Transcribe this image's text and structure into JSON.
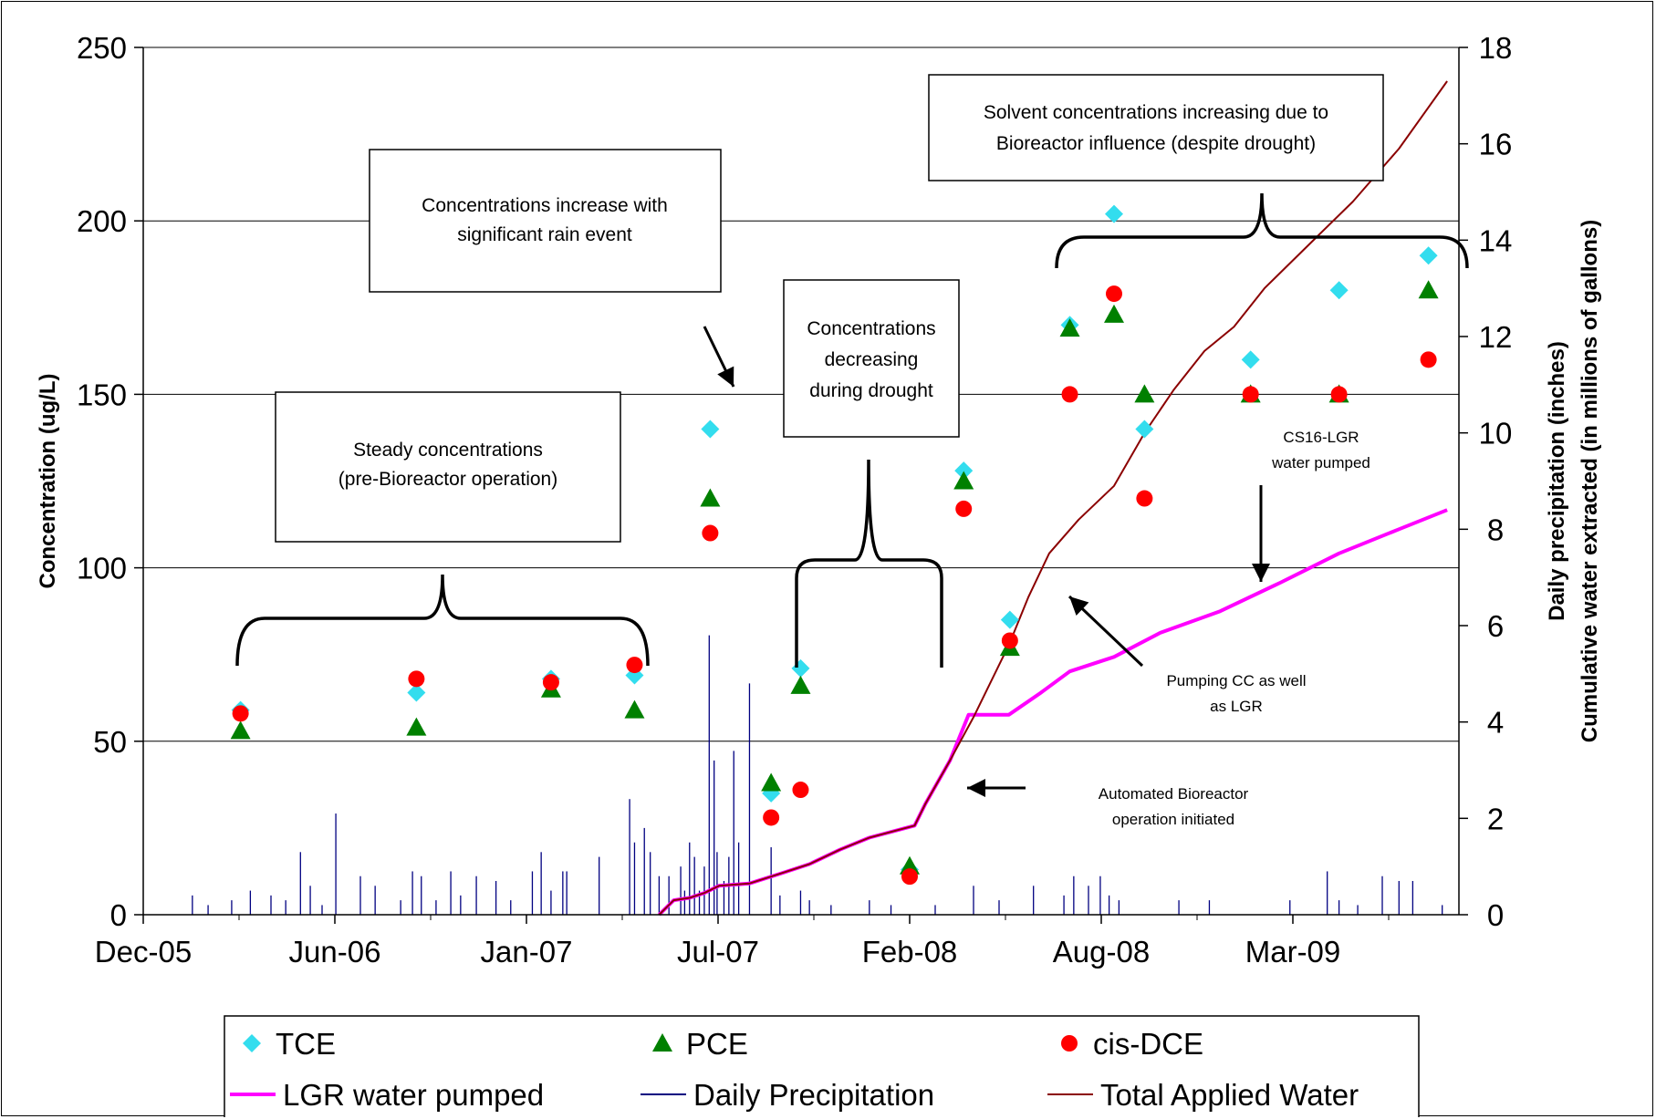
{
  "chart_data": {
    "type": "scatter",
    "x_axis": {
      "tick_labels": [
        "Dec-05",
        "Jun-06",
        "Jan-07",
        "Jul-07",
        "Feb-08",
        "Aug-08",
        "Mar-09"
      ],
      "range": [
        "2005-12-01",
        "2009-08-01"
      ]
    },
    "y_axis_left": {
      "label": "Concentration (ug/L)",
      "ticks": [
        "0",
        "50",
        "100",
        "150",
        "200",
        "250"
      ],
      "range": [
        0,
        250
      ]
    },
    "y_axis_right": {
      "label_line1": "Daily precipitation (inches)",
      "label_line2": "Cumulative water extracted (in millions of gallons)",
      "ticks": [
        "0",
        "2",
        "4",
        "6",
        "8",
        "10",
        "12",
        "14",
        "16",
        "18"
      ],
      "range": [
        0,
        18
      ]
    },
    "grid": "horizontal major gridlines",
    "series": [
      {
        "name": "TCE",
        "marker": "diamond",
        "color": "#33ddee",
        "axis": "left",
        "points": [
          [
            "2006-03-10",
            59
          ],
          [
            "2006-09-05",
            64
          ],
          [
            "2007-01-20",
            68
          ],
          [
            "2007-04-15",
            69
          ],
          [
            "2007-07-01",
            140
          ],
          [
            "2007-09-01",
            35
          ],
          [
            "2007-10-01",
            71
          ],
          [
            "2008-01-20",
            13
          ],
          [
            "2008-03-15",
            128
          ],
          [
            "2008-05-01",
            85
          ],
          [
            "2008-07-01",
            170
          ],
          [
            "2008-08-15",
            202
          ],
          [
            "2008-09-15",
            140
          ],
          [
            "2009-01-01",
            160
          ],
          [
            "2009-04-01",
            180
          ],
          [
            "2009-07-01",
            190
          ]
        ]
      },
      {
        "name": "PCE",
        "marker": "triangle",
        "color": "#008000",
        "axis": "left",
        "points": [
          [
            "2006-03-10",
            53
          ],
          [
            "2006-09-05",
            54
          ],
          [
            "2007-01-20",
            65
          ],
          [
            "2007-04-15",
            59
          ],
          [
            "2007-07-01",
            120
          ],
          [
            "2007-09-01",
            38
          ],
          [
            "2007-10-01",
            66
          ],
          [
            "2008-01-20",
            14
          ],
          [
            "2008-03-15",
            125
          ],
          [
            "2008-05-01",
            77
          ],
          [
            "2008-07-01",
            169
          ],
          [
            "2008-08-15",
            173
          ],
          [
            "2008-09-15",
            150
          ],
          [
            "2009-01-01",
            150
          ],
          [
            "2009-04-01",
            150
          ],
          [
            "2009-07-01",
            180
          ]
        ]
      },
      {
        "name": "cis-DCE",
        "marker": "circle",
        "color": "#ff0000",
        "axis": "left",
        "points": [
          [
            "2006-03-10",
            58
          ],
          [
            "2006-09-05",
            68
          ],
          [
            "2007-01-20",
            67
          ],
          [
            "2007-04-15",
            72
          ],
          [
            "2007-07-01",
            110
          ],
          [
            "2007-09-01",
            28
          ],
          [
            "2007-10-01",
            36
          ],
          [
            "2008-01-20",
            11
          ],
          [
            "2008-03-15",
            117
          ],
          [
            "2008-05-01",
            79
          ],
          [
            "2008-07-01",
            150
          ],
          [
            "2008-08-15",
            179
          ],
          [
            "2008-09-15",
            120
          ],
          [
            "2009-01-01",
            150
          ],
          [
            "2009-04-01",
            150
          ],
          [
            "2009-07-01",
            160
          ]
        ]
      },
      {
        "name": "LGR water pumped",
        "type": "line",
        "color": "#ff00ff",
        "axis": "right",
        "points": [
          [
            "2007-05-10",
            0
          ],
          [
            "2007-05-25",
            0.3
          ],
          [
            "2007-06-10",
            0.35
          ],
          [
            "2007-06-25",
            0.45
          ],
          [
            "2007-07-10",
            0.6
          ],
          [
            "2007-08-10",
            0.65
          ],
          [
            "2007-09-10",
            0.85
          ],
          [
            "2007-10-10",
            1.05
          ],
          [
            "2007-11-10",
            1.35
          ],
          [
            "2007-12-10",
            1.6
          ],
          [
            "2008-01-25",
            1.85
          ],
          [
            "2008-02-05",
            2.3
          ],
          [
            "2008-03-01",
            3.2
          ],
          [
            "2008-03-20",
            4.15
          ],
          [
            "2008-04-30",
            4.15
          ],
          [
            "2008-06-01",
            4.6
          ],
          [
            "2008-07-01",
            5.05
          ],
          [
            "2008-08-15",
            5.35
          ],
          [
            "2008-10-01",
            5.85
          ],
          [
            "2008-12-01",
            6.3
          ],
          [
            "2009-02-01",
            6.9
          ],
          [
            "2009-04-01",
            7.5
          ],
          [
            "2009-06-01",
            8.0
          ],
          [
            "2009-07-20",
            8.4
          ]
        ]
      },
      {
        "name": "Total Applied Water",
        "type": "line",
        "color": "#8b0000",
        "axis": "right",
        "points": [
          [
            "2007-05-10",
            0
          ],
          [
            "2007-05-25",
            0.3
          ],
          [
            "2007-06-10",
            0.35
          ],
          [
            "2007-06-25",
            0.45
          ],
          [
            "2007-07-10",
            0.6
          ],
          [
            "2007-08-10",
            0.65
          ],
          [
            "2007-09-10",
            0.85
          ],
          [
            "2007-10-10",
            1.05
          ],
          [
            "2007-11-10",
            1.35
          ],
          [
            "2007-12-10",
            1.6
          ],
          [
            "2008-01-25",
            1.85
          ],
          [
            "2008-02-05",
            2.3
          ],
          [
            "2008-03-01",
            3.2
          ],
          [
            "2008-03-25",
            4.1
          ],
          [
            "2008-04-30",
            5.6
          ],
          [
            "2008-05-20",
            6.6
          ],
          [
            "2008-06-10",
            7.5
          ],
          [
            "2008-07-10",
            8.2
          ],
          [
            "2008-08-15",
            8.9
          ],
          [
            "2008-09-15",
            10.0
          ],
          [
            "2008-10-15",
            10.9
          ],
          [
            "2008-11-15",
            11.7
          ],
          [
            "2008-12-15",
            12.2
          ],
          [
            "2009-01-15",
            13.0
          ],
          [
            "2009-03-01",
            13.9
          ],
          [
            "2009-04-15",
            14.8
          ],
          [
            "2009-06-01",
            15.9
          ],
          [
            "2009-07-20",
            17.3
          ]
        ]
      },
      {
        "name": "Daily Precipitation",
        "type": "spikes",
        "color": "#000080",
        "axis": "right",
        "points": [
          [
            "2006-01-20",
            0.4
          ],
          [
            "2006-02-05",
            0.2
          ],
          [
            "2006-03-01",
            0.3
          ],
          [
            "2006-03-20",
            0.5
          ],
          [
            "2006-04-10",
            0.4
          ],
          [
            "2006-04-25",
            0.3
          ],
          [
            "2006-05-10",
            1.3
          ],
          [
            "2006-05-20",
            0.6
          ],
          [
            "2006-06-01",
            0.2
          ],
          [
            "2006-06-15",
            2.1
          ],
          [
            "2006-07-10",
            0.8
          ],
          [
            "2006-07-25",
            0.6
          ],
          [
            "2006-08-20",
            0.3
          ],
          [
            "2006-09-01",
            0.9
          ],
          [
            "2006-09-10",
            0.8
          ],
          [
            "2006-09-25",
            0.3
          ],
          [
            "2006-10-10",
            0.9
          ],
          [
            "2006-10-20",
            0.4
          ],
          [
            "2006-11-05",
            0.8
          ],
          [
            "2006-11-25",
            0.7
          ],
          [
            "2006-12-10",
            0.3
          ],
          [
            "2007-01-01",
            0.9
          ],
          [
            "2007-01-10",
            1.3
          ],
          [
            "2007-01-20",
            0.5
          ],
          [
            "2007-02-01",
            0.9
          ],
          [
            "2007-02-05",
            0.9
          ],
          [
            "2007-03-10",
            1.2
          ],
          [
            "2007-04-10",
            2.4
          ],
          [
            "2007-04-15",
            1.5
          ],
          [
            "2007-04-25",
            1.8
          ],
          [
            "2007-05-01",
            1.3
          ],
          [
            "2007-05-10",
            0.8
          ],
          [
            "2007-05-20",
            0.8
          ],
          [
            "2007-06-01",
            1.0
          ],
          [
            "2007-06-05",
            0.5
          ],
          [
            "2007-06-10",
            1.5
          ],
          [
            "2007-06-15",
            1.2
          ],
          [
            "2007-06-20",
            0.5
          ],
          [
            "2007-06-25",
            1.0
          ],
          [
            "2007-06-30",
            5.8
          ],
          [
            "2007-07-05",
            3.2
          ],
          [
            "2007-07-08",
            1.3
          ],
          [
            "2007-07-15",
            0.7
          ],
          [
            "2007-07-20",
            1.2
          ],
          [
            "2007-07-25",
            3.4
          ],
          [
            "2007-07-30",
            1.5
          ],
          [
            "2007-08-10",
            4.8
          ],
          [
            "2007-09-01",
            1.4
          ],
          [
            "2007-09-10",
            0.4
          ],
          [
            "2007-10-01",
            0.5
          ],
          [
            "2007-10-10",
            0.3
          ],
          [
            "2007-11-01",
            0.2
          ],
          [
            "2007-12-10",
            0.3
          ],
          [
            "2008-01-01",
            0.2
          ],
          [
            "2008-02-15",
            0.2
          ],
          [
            "2008-03-25",
            0.6
          ],
          [
            "2008-04-20",
            0.3
          ],
          [
            "2008-05-25",
            0.6
          ],
          [
            "2008-06-25",
            0.4
          ],
          [
            "2008-07-05",
            0.8
          ],
          [
            "2008-07-20",
            0.6
          ],
          [
            "2008-08-01",
            0.8
          ],
          [
            "2008-08-10",
            0.4
          ],
          [
            "2008-08-20",
            0.3
          ],
          [
            "2008-10-20",
            0.3
          ],
          [
            "2008-11-20",
            0.3
          ],
          [
            "2009-02-10",
            0.3
          ],
          [
            "2009-03-20",
            0.9
          ],
          [
            "2009-04-01",
            0.3
          ],
          [
            "2009-04-20",
            0.2
          ],
          [
            "2009-05-15",
            0.8
          ],
          [
            "2009-06-01",
            0.7
          ],
          [
            "2009-06-15",
            0.7
          ],
          [
            "2009-07-15",
            0.2
          ]
        ]
      }
    ],
    "annotations": [
      {
        "id": "steady",
        "lines": [
          "Steady concentrations",
          "(pre-Bioreactor operation)"
        ]
      },
      {
        "id": "rain",
        "lines": [
          "Concentrations increase with",
          "significant rain event"
        ]
      },
      {
        "id": "drought",
        "lines": [
          "Concentrations",
          "decreasing",
          "during drought"
        ]
      },
      {
        "id": "solvent",
        "lines": [
          "Solvent concentrations increasing due to",
          "Bioreactor influence (despite drought)"
        ]
      },
      {
        "id": "cs16",
        "lines": [
          "CS16-LGR",
          "water pumped"
        ]
      },
      {
        "id": "pumping",
        "lines": [
          "Pumping CC as well",
          "as LGR"
        ]
      },
      {
        "id": "automated",
        "lines": [
          "Automated Bioreactor",
          "operation initiated"
        ]
      }
    ],
    "legend": {
      "placement": "bottom",
      "entries": [
        "TCE",
        "PCE",
        "cis-DCE",
        "LGR water pumped",
        "Daily Precipitation",
        "Total Applied Water"
      ]
    }
  }
}
